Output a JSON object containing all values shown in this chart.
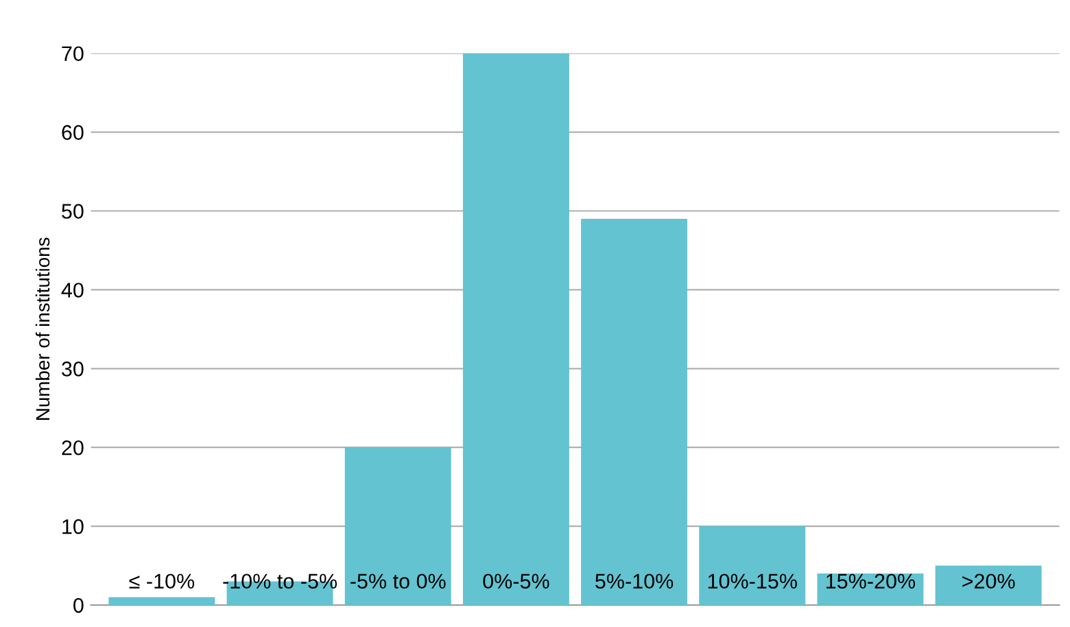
{
  "chart_data": {
    "type": "bar",
    "ylabel": "Number of institutions",
    "categories": [
      "≤ -10%",
      "-10% to -5%",
      "-5% to 0%",
      "0%-5%",
      "5%-10%",
      "10%-15%",
      "15%-20%",
      ">20%"
    ],
    "values": [
      1,
      3,
      20,
      70,
      49,
      10,
      4,
      5
    ],
    "color": "#63c3d1",
    "ylim": [
      0,
      70
    ],
    "yticks": [
      0,
      10,
      20,
      30,
      40,
      50,
      60,
      70
    ],
    "grid": "y"
  }
}
